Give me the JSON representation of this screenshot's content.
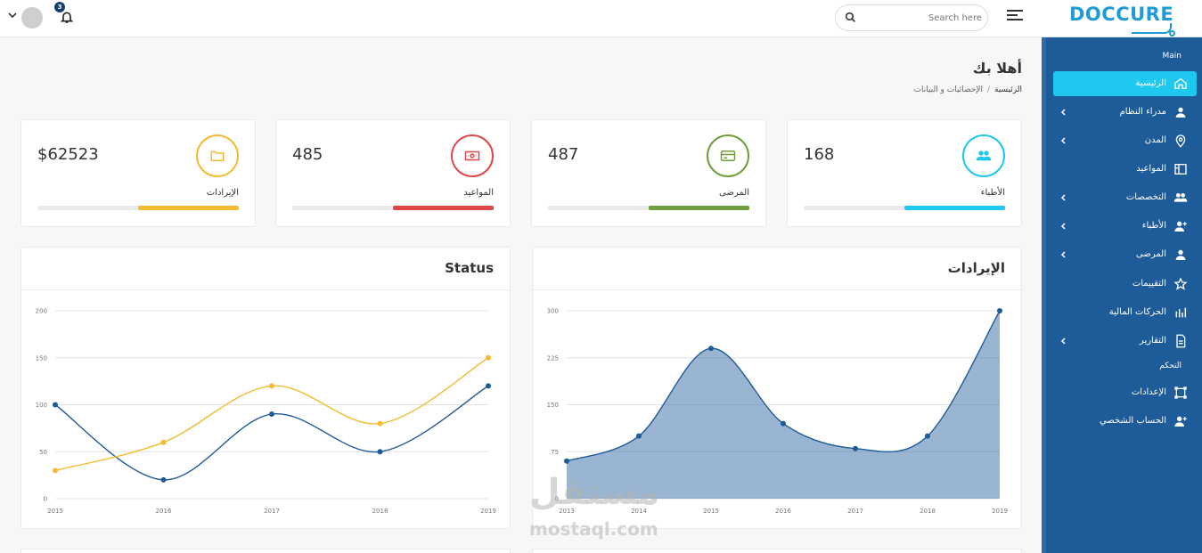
{
  "header": {
    "logo": "DOCCURE",
    "search_placeholder": "Search here",
    "notification_count": "3"
  },
  "sidebar": {
    "section_main": "Main",
    "section_control": "التحكم",
    "items": [
      {
        "label": "الرئيسية",
        "icon": "home-icon",
        "active": true,
        "chevron": false
      },
      {
        "label": "مدراء النظام",
        "icon": "user-icon",
        "active": false,
        "chevron": true
      },
      {
        "label": "المدن",
        "icon": "map-pin-icon",
        "active": false,
        "chevron": true
      },
      {
        "label": "المواعيد",
        "icon": "layout-icon",
        "active": false,
        "chevron": false
      },
      {
        "label": "التخصصات",
        "icon": "users-icon",
        "active": false,
        "chevron": true
      },
      {
        "label": "الأطباء",
        "icon": "user-plus-icon",
        "active": false,
        "chevron": true
      },
      {
        "label": "المرضى",
        "icon": "user-icon",
        "active": false,
        "chevron": true
      },
      {
        "label": "التقييمات",
        "icon": "star-icon",
        "active": false,
        "chevron": false
      },
      {
        "label": "الحركات المالية",
        "icon": "bar-chart-icon",
        "active": false,
        "chevron": false
      },
      {
        "label": "التقارير",
        "icon": "file-icon",
        "active": false,
        "chevron": true
      },
      {
        "label": "الإعدادات",
        "icon": "settings-icon",
        "active": false,
        "chevron": false
      },
      {
        "label": "الحساب الشخصي",
        "icon": "user-plus-icon",
        "active": false,
        "chevron": false
      }
    ]
  },
  "page": {
    "title": "أهلا بك",
    "breadcrumb_home": "الرئيسية",
    "breadcrumb_current": "الإحصائيات و البيانات"
  },
  "stats": [
    {
      "value": "168",
      "label": "الأطباء",
      "color": "#1fc8ef",
      "icon": "users-icon",
      "progress": 0.5
    },
    {
      "value": "487",
      "label": "المرضى",
      "color": "#6f9f3a",
      "icon": "credit-card-icon",
      "progress": 0.5
    },
    {
      "value": "485",
      "label": "المواعيد",
      "color": "#e04848",
      "icon": "money-icon",
      "progress": 0.5
    },
    {
      "value": "$62523",
      "label": "الإيرادات",
      "color": "#f4bb32",
      "icon": "folder-icon",
      "progress": 0.5
    }
  ],
  "charts": {
    "revenue_title": "الإيرادات",
    "status_title": "Status"
  },
  "chart_data": [
    {
      "type": "area",
      "title": "الإيرادات",
      "x": [
        "2013",
        "2014",
        "2015",
        "2016",
        "2017",
        "2018",
        "2019"
      ],
      "series": [
        {
          "values": [
            60,
            100,
            240,
            120,
            80,
            100,
            300
          ]
        }
      ],
      "ylim": [
        0,
        300
      ],
      "yticks": [
        0,
        75,
        150,
        225,
        300
      ],
      "color": "#1e5b99",
      "grid": true
    },
    {
      "type": "line",
      "title": "Status",
      "x": [
        "2015",
        "2016",
        "2017",
        "2018",
        "2019"
      ],
      "series": [
        {
          "values": [
            100,
            20,
            90,
            50,
            120
          ],
          "color": "#1e5b99"
        },
        {
          "values": [
            30,
            60,
            120,
            80,
            150
          ],
          "color": "#f4bb32"
        }
      ],
      "ylim": [
        0,
        200
      ],
      "yticks": [
        0,
        50,
        100,
        150,
        200
      ],
      "grid": true
    }
  ],
  "watermark": {
    "arabic": "مستقل",
    "latin": "mostaql.com"
  }
}
